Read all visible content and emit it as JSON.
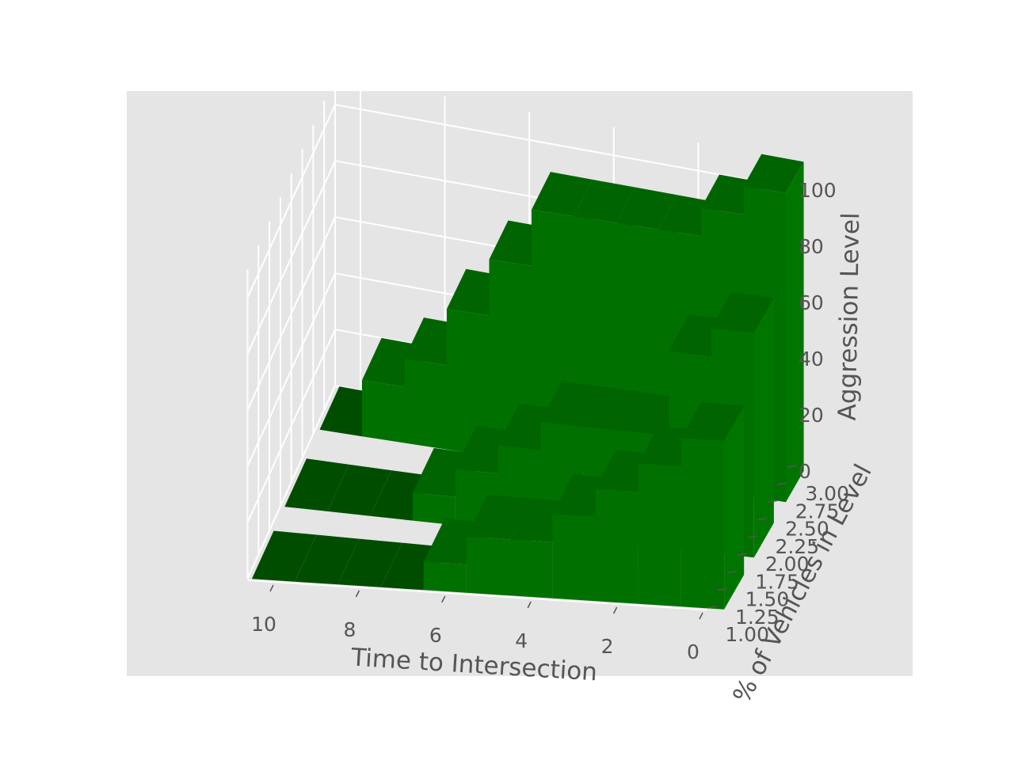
{
  "chart_data": {
    "type": "bar3d",
    "title": "",
    "xlabel": "Time to Intersection",
    "ylabel": "% of Vehicles in Level",
    "zlabel": "Aggression Level",
    "xticks": [
      "10",
      "8",
      "6",
      "4",
      "2",
      "0"
    ],
    "yticks": [
      "1.00",
      "1.25",
      "1.50",
      "1.75",
      "2.00",
      "2.25",
      "2.50",
      "2.75",
      "3.00"
    ],
    "zticks": [
      "0",
      "20",
      "40",
      "60",
      "80",
      "100"
    ],
    "xlim": [
      0,
      11
    ],
    "ylim": [
      1,
      3
    ],
    "zlim": [
      0,
      110
    ],
    "grid": true,
    "bar_color": "#007000",
    "background_color": "#e5e5e5",
    "series": [
      {
        "level": 3,
        "times": [
          0,
          1,
          2,
          3,
          4,
          5,
          6,
          7,
          8,
          9,
          10
        ],
        "values": [
          110,
          100,
          90,
          90,
          90,
          90,
          70,
          50,
          30,
          20,
          0
        ]
      },
      {
        "level": 2,
        "times": [
          0,
          1,
          2,
          3,
          4,
          5,
          6,
          7,
          8,
          9,
          10
        ],
        "values": [
          80,
          70,
          40,
          40,
          40,
          30,
          20,
          10,
          0,
          0,
          0
        ]
      },
      {
        "level": 1,
        "times": [
          0,
          1,
          2,
          3,
          4,
          5,
          6,
          7,
          8,
          9,
          10
        ],
        "values": [
          60,
          50,
          40,
          30,
          20,
          20,
          10,
          0,
          0,
          0,
          0
        ]
      }
    ]
  }
}
